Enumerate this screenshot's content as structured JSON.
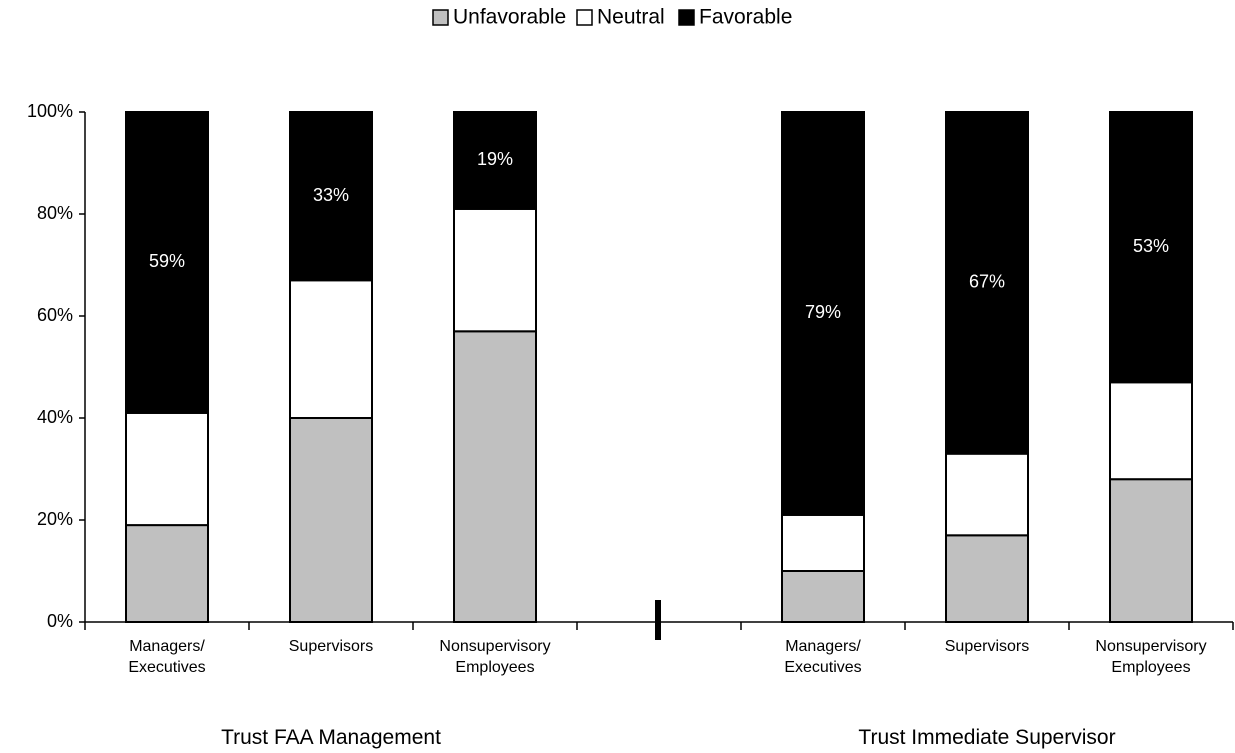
{
  "chart_data": {
    "type": "stacked_bar",
    "categories": [
      "Managers/ Executives",
      "Supervisors",
      "Nonsupervisory Employees",
      null,
      "Managers/ Executives",
      "Supervisors",
      "Nonsupervisory Employees"
    ],
    "group_labels": [
      "Trust FAA Management",
      "Trust Immediate Supervisor"
    ],
    "series": [
      {
        "name": "Unfavorable",
        "color": "#c0c0c0",
        "values": [
          19,
          40,
          57,
          null,
          10,
          17,
          28
        ]
      },
      {
        "name": "Neutral",
        "color": "#ffffff",
        "values": [
          22,
          27,
          24,
          null,
          11,
          16,
          19
        ]
      },
      {
        "name": "Favorable",
        "color": "#000000",
        "values": [
          59,
          33,
          19,
          null,
          79,
          67,
          53
        ],
        "value_labels": [
          "59%",
          "33%",
          "19%",
          null,
          "79%",
          "67%",
          "53%"
        ]
      }
    ],
    "ylim": [
      0,
      100
    ],
    "yticks": [
      {
        "value": 0,
        "label": "0%"
      },
      {
        "value": 20,
        "label": "20%"
      },
      {
        "value": 40,
        "label": "40%"
      },
      {
        "value": 60,
        "label": "60%"
      },
      {
        "value": 80,
        "label": "80%"
      },
      {
        "value": 100,
        "label": "100%"
      }
    ],
    "legend": "top"
  }
}
